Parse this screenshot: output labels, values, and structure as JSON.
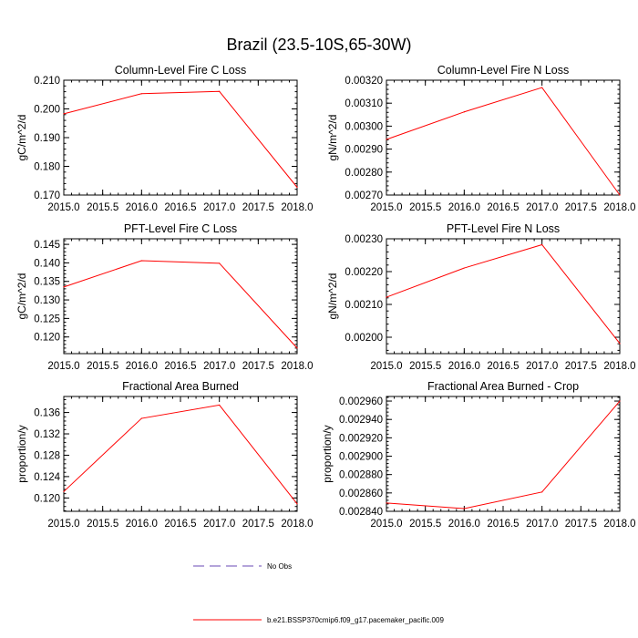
{
  "title": "Brazil (23.5-10S,65-30W)",
  "chart_data": [
    {
      "type": "line",
      "title": "Column-Level Fire C Loss",
      "xlabel": "",
      "ylabel": "gC/m^2/d",
      "x": [
        2015,
        2016,
        2017,
        2018
      ],
      "xlim": [
        2015,
        2018
      ],
      "xticks": [
        2015,
        2015.5,
        2016,
        2016.5,
        2017,
        2017.5,
        2018
      ],
      "xtick_labels": [
        "2015.0",
        "2015.5",
        "2016.0",
        "2016.5",
        "2017.0",
        "2017.5",
        "2018.0"
      ],
      "ylim": [
        0.17,
        0.21
      ],
      "yticks": [
        0.17,
        0.18,
        0.19,
        0.2,
        0.21
      ],
      "ytick_labels": [
        "0.170",
        "0.180",
        "0.190",
        "0.200",
        "0.210"
      ],
      "series": [
        {
          "name": "b.e21.BSSP370cmip6.f09_g17.pacemaker_pacific.009",
          "color": "#ff0000",
          "values": [
            0.1983,
            0.2053,
            0.2061,
            0.1727
          ]
        }
      ]
    },
    {
      "type": "line",
      "title": "Column-Level Fire N Loss",
      "xlabel": "",
      "ylabel": "gN/m^2/d",
      "x": [
        2015,
        2016,
        2017,
        2018
      ],
      "xlim": [
        2015,
        2018
      ],
      "xticks": [
        2015,
        2015.5,
        2016,
        2016.5,
        2017,
        2017.5,
        2018
      ],
      "xtick_labels": [
        "2015.0",
        "2015.5",
        "2016.0",
        "2016.5",
        "2017.0",
        "2017.5",
        "2018.0"
      ],
      "ylim": [
        0.0027,
        0.0032
      ],
      "yticks": [
        0.0027,
        0.0028,
        0.0029,
        0.003,
        0.0031,
        0.0032
      ],
      "ytick_labels": [
        "0.00270",
        "0.00280",
        "0.00290",
        "0.00300",
        "0.00310",
        "0.00320"
      ],
      "series": [
        {
          "name": "b.e21.BSSP370cmip6.f09_g17.pacemaker_pacific.009",
          "color": "#ff0000",
          "values": [
            0.002942,
            0.003062,
            0.003168,
            0.0027
          ]
        }
      ]
    },
    {
      "type": "line",
      "title": "PFT-Level Fire C Loss",
      "xlabel": "",
      "ylabel": "gC/m^2/d",
      "x": [
        2015,
        2016,
        2017,
        2018
      ],
      "xlim": [
        2015,
        2018
      ],
      "xticks": [
        2015,
        2015.5,
        2016,
        2016.5,
        2017,
        2017.5,
        2018
      ],
      "xtick_labels": [
        "2015.0",
        "2015.5",
        "2016.0",
        "2016.5",
        "2017.0",
        "2017.5",
        "2018.0"
      ],
      "ylim": [
        0.1155,
        0.1465
      ],
      "yticks": [
        0.12,
        0.125,
        0.13,
        0.135,
        0.14,
        0.145
      ],
      "ytick_labels": [
        "0.120",
        "0.125",
        "0.130",
        "0.135",
        "0.140",
        "0.145"
      ],
      "series": [
        {
          "name": "b.e21.BSSP370cmip6.f09_g17.pacemaker_pacific.009",
          "color": "#ff0000",
          "values": [
            0.1335,
            0.1406,
            0.1399,
            0.117
          ]
        }
      ]
    },
    {
      "type": "line",
      "title": "PFT-Level Fire N Loss",
      "xlabel": "",
      "ylabel": "gN/m^2/d",
      "x": [
        2015,
        2016,
        2017,
        2018
      ],
      "xlim": [
        2015,
        2018
      ],
      "xticks": [
        2015,
        2015.5,
        2016,
        2016.5,
        2017,
        2017.5,
        2018
      ],
      "xtick_labels": [
        "2015.0",
        "2015.5",
        "2016.0",
        "2016.5",
        "2017.0",
        "2017.5",
        "2018.0"
      ],
      "ylim": [
        0.00195,
        0.0023
      ],
      "yticks": [
        0.002,
        0.0021,
        0.0022,
        0.0023
      ],
      "ytick_labels": [
        "0.00200",
        "0.00210",
        "0.00220",
        "0.00230"
      ],
      "series": [
        {
          "name": "b.e21.BSSP370cmip6.f09_g17.pacemaker_pacific.009",
          "color": "#ff0000",
          "values": [
            0.002122,
            0.002211,
            0.002282,
            0.001981
          ]
        }
      ]
    },
    {
      "type": "line",
      "title": "Fractional Area Burned",
      "xlabel": "",
      "ylabel": "proportion/y",
      "x": [
        2015,
        2016,
        2017,
        2018
      ],
      "xlim": [
        2015,
        2018
      ],
      "xticks": [
        2015,
        2015.5,
        2016,
        2016.5,
        2017,
        2017.5,
        2018
      ],
      "xtick_labels": [
        "2015.0",
        "2015.5",
        "2016.0",
        "2016.5",
        "2017.0",
        "2017.5",
        "2018.0"
      ],
      "ylim": [
        0.1175,
        0.139
      ],
      "yticks": [
        0.12,
        0.124,
        0.128,
        0.132,
        0.136
      ],
      "ytick_labels": [
        "0.120",
        "0.124",
        "0.128",
        "0.132",
        "0.136"
      ],
      "series": [
        {
          "name": "b.e21.BSSP370cmip6.f09_g17.pacemaker_pacific.009",
          "color": "#ff0000",
          "values": [
            0.1212,
            0.1349,
            0.1374,
            0.1189
          ]
        }
      ]
    },
    {
      "type": "line",
      "title": "Fractional Area Burned - Crop",
      "xlabel": "",
      "ylabel": "proportion/y",
      "x": [
        2015,
        2016,
        2017,
        2018
      ],
      "xlim": [
        2015,
        2018
      ],
      "xticks": [
        2015,
        2015.5,
        2016,
        2016.5,
        2017,
        2017.5,
        2018
      ],
      "xtick_labels": [
        "2015.0",
        "2015.5",
        "2016.0",
        "2016.5",
        "2017.0",
        "2017.5",
        "2018.0"
      ],
      "ylim": [
        0.00284,
        0.002965
      ],
      "yticks": [
        0.00284,
        0.00286,
        0.00288,
        0.0029,
        0.00292,
        0.00294,
        0.00296
      ],
      "ytick_labels": [
        "0.002840",
        "0.002860",
        "0.002880",
        "0.002900",
        "0.002920",
        "0.002940",
        "0.002960"
      ],
      "series": [
        {
          "name": "b.e21.BSSP370cmip6.f09_g17.pacemaker_pacific.009",
          "color": "#ff0000",
          "values": [
            0.002849,
            0.002843,
            0.002861,
            0.00296
          ]
        }
      ]
    }
  ],
  "legend": [
    {
      "label": "No Obs",
      "color": "#6a4ab5",
      "style": "dashed"
    },
    {
      "label": "b.e21.BSSP370cmip6.f09_g17.pacemaker_pacific.009",
      "color": "#ff0000",
      "style": "solid"
    }
  ]
}
